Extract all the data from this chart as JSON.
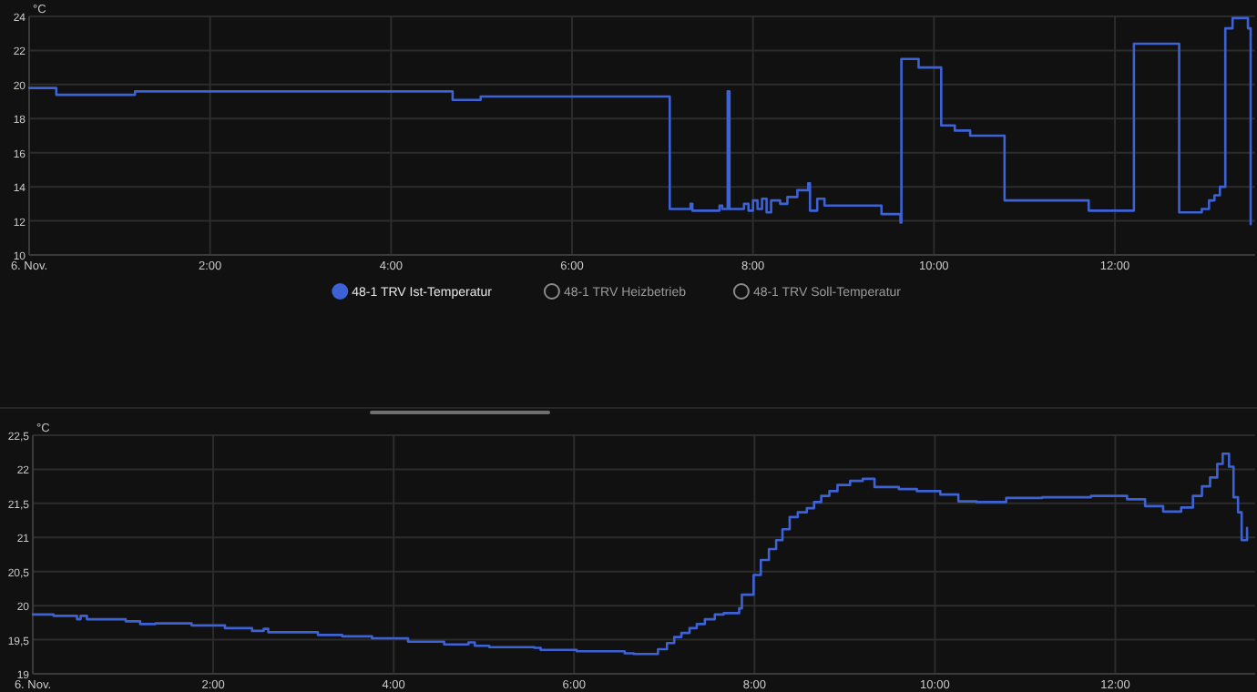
{
  "chart_data": [
    {
      "type": "step",
      "ylabel": "°C",
      "xlim": [
        0,
        13.55
      ],
      "ylim": [
        10,
        24
      ],
      "yticks": [
        10,
        12,
        14,
        16,
        18,
        20,
        22,
        24
      ],
      "xticks": [
        {
          "value": 0,
          "label": "6. Nov."
        },
        {
          "value": 2,
          "label": "2:00"
        },
        {
          "value": 4,
          "label": "4:00"
        },
        {
          "value": 6,
          "label": "6:00"
        },
        {
          "value": 8,
          "label": "8:00"
        },
        {
          "value": 10,
          "label": "10:00"
        },
        {
          "value": 12,
          "label": "12:00"
        }
      ],
      "grid": true,
      "legend": "bottom",
      "marker": "none",
      "line_style": "solid",
      "series": [
        {
          "name": "48-1 TRV Ist-Temperatur",
          "color": "#3d62d6",
          "x": [
            0,
            0.3,
            1.17,
            4.68,
            4.99,
            7.08,
            7.31,
            7.33,
            7.63,
            7.66,
            7.72,
            7.74,
            7.9,
            7.95,
            8.0,
            8.05,
            8.1,
            8.15,
            8.2,
            8.3,
            8.38,
            8.49,
            8.61,
            8.63,
            8.71,
            8.79,
            9.42,
            9.63,
            9.64,
            9.83,
            10.08,
            10.23,
            10.4,
            10.78,
            11.71,
            12.21,
            12.71,
            12.96,
            13.04,
            13.1,
            13.16,
            13.22,
            13.3,
            13.47,
            13.5
          ],
          "values": [
            19.8,
            19.4,
            19.6,
            19.1,
            19.3,
            12.7,
            13.0,
            12.6,
            12.9,
            12.7,
            19.6,
            12.7,
            13.0,
            12.6,
            13.2,
            12.7,
            13.3,
            12.5,
            13.2,
            13.0,
            13.4,
            13.8,
            14.2,
            12.6,
            13.3,
            12.9,
            12.4,
            11.9,
            21.5,
            21.0,
            17.6,
            17.3,
            17.0,
            13.2,
            12.6,
            22.4,
            12.5,
            12.7,
            13.2,
            13.5,
            14.0,
            23.3,
            23.9,
            23.3,
            11.8
          ]
        },
        {
          "name": "48-1 TRV Heizbetrieb"
        },
        {
          "name": "48-1 TRV Soll-Temperatur"
        }
      ]
    },
    {
      "type": "step",
      "ylabel": "°C",
      "xlim": [
        0,
        13.55
      ],
      "ylim": [
        19,
        22.5
      ],
      "yticks": [
        19,
        {
          "value": 19.5,
          "label": "19,5"
        },
        20,
        {
          "value": 20.5,
          "label": "20,5"
        },
        21,
        {
          "value": 21.5,
          "label": "21,5"
        },
        22,
        {
          "value": 22.5,
          "label": "22,5"
        }
      ],
      "xticks": [
        {
          "value": 0,
          "label": "6. Nov."
        },
        {
          "value": 2,
          "label": "2:00"
        },
        {
          "value": 4,
          "label": "4:00"
        },
        {
          "value": 6,
          "label": "6:00"
        },
        {
          "value": 8,
          "label": "8:00"
        },
        {
          "value": 10,
          "label": "10:00"
        },
        {
          "value": 12,
          "label": "12:00"
        }
      ],
      "grid": true,
      "marker": "none",
      "line_style": "solid",
      "series": [
        {
          "color": "#3d62d6",
          "x": [
            0,
            0.23,
            0.49,
            0.53,
            0.6,
            1.03,
            1.19,
            1.36,
            1.76,
            2.13,
            2.43,
            2.56,
            2.61,
            3.16,
            3.43,
            3.76,
            4.16,
            4.56,
            4.83,
            4.9,
            5.06,
            5.56,
            5.63,
            6.03,
            6.56,
            6.66,
            6.93,
            7.03,
            7.11,
            7.19,
            7.28,
            7.36,
            7.45,
            7.56,
            7.66,
            7.83,
            7.86,
            7.99,
            8.07,
            8.16,
            8.24,
            8.31,
            8.39,
            8.48,
            8.58,
            8.66,
            8.74,
            8.83,
            8.92,
            9.06,
            9.2,
            9.33,
            9.6,
            9.8,
            10.06,
            10.26,
            10.46,
            10.79,
            11.19,
            11.73,
            12.13,
            12.33,
            12.53,
            12.73,
            12.86,
            12.96,
            13.05,
            13.13,
            13.19,
            13.26,
            13.31,
            13.36,
            13.4,
            13.46
          ],
          "values": [
            19.87,
            19.85,
            19.8,
            19.85,
            19.8,
            19.77,
            19.73,
            19.74,
            19.71,
            19.67,
            19.63,
            19.66,
            19.61,
            19.57,
            19.55,
            19.52,
            19.47,
            19.43,
            19.46,
            19.41,
            19.39,
            19.38,
            19.35,
            19.33,
            19.3,
            19.29,
            19.36,
            19.45,
            19.54,
            19.6,
            19.67,
            19.73,
            19.8,
            19.87,
            19.89,
            19.96,
            20.16,
            20.45,
            20.67,
            20.83,
            20.96,
            21.12,
            21.3,
            21.37,
            21.43,
            21.52,
            21.61,
            21.68,
            21.77,
            21.83,
            21.86,
            21.74,
            21.71,
            21.68,
            21.63,
            21.53,
            21.52,
            21.58,
            21.59,
            21.61,
            21.56,
            21.46,
            21.38,
            21.44,
            21.61,
            21.75,
            21.88,
            22.08,
            22.23,
            22.04,
            21.59,
            21.37,
            20.96,
            21.14
          ]
        }
      ]
    }
  ]
}
